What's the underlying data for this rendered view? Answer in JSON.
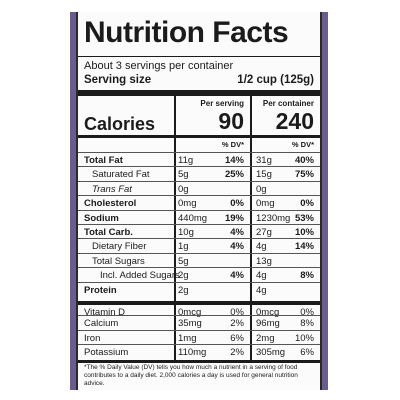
{
  "title": "Nutrition Facts",
  "servings_per_container": "About 3 servings per container",
  "serving_size_label": "Serving size",
  "serving_size_value": "1/2 cup (125g)",
  "columns": {
    "per_serving": "Per serving",
    "per_container": "Per container",
    "calories_label": "Calories",
    "calories_serving": "90",
    "calories_container": "240",
    "dv_header": "% DV*"
  },
  "rows": [
    {
      "name": "Total Fat",
      "style": "bold",
      "a1": "11g",
      "p1": "14%",
      "a2": "31g",
      "p2": "40%"
    },
    {
      "name": "Saturated Fat",
      "style": "indent1",
      "a1": "5g",
      "p1": "25%",
      "a2": "15g",
      "p2": "75%"
    },
    {
      "name": "Trans Fat",
      "style": "indent1 italic",
      "a1": "0g",
      "p1": "",
      "a2": "0g",
      "p2": ""
    },
    {
      "name": "Cholesterol",
      "style": "bold",
      "a1": "0mg",
      "p1": "0%",
      "a2": "0mg",
      "p2": "0%"
    },
    {
      "name": "Sodium",
      "style": "bold",
      "a1": "440mg",
      "p1": "19%",
      "a2": "1230mg",
      "p2": "53%"
    },
    {
      "name": "Total Carb.",
      "style": "bold",
      "a1": "10g",
      "p1": "4%",
      "a2": "27g",
      "p2": "10%"
    },
    {
      "name": "Dietary Fiber",
      "style": "indent1",
      "a1": "1g",
      "p1": "4%",
      "a2": "4g",
      "p2": "14%"
    },
    {
      "name": "Total Sugars",
      "style": "indent1",
      "a1": "5g",
      "p1": "",
      "a2": "13g",
      "p2": ""
    },
    {
      "name": "Incl. Added Sugars",
      "style": "indent2",
      "a1": "2g",
      "p1": "4%",
      "a2": "4g",
      "p2": "8%"
    },
    {
      "name": "Protein",
      "style": "bold",
      "a1": "2g",
      "p1": "",
      "a2": "4g",
      "p2": ""
    },
    {
      "name": "Vitamin D",
      "style": "",
      "a1": "0mcg",
      "p1": "0%",
      "a2": "0mcg",
      "p2": "0%"
    },
    {
      "name": "Calcium",
      "style": "",
      "a1": "35mg",
      "p1": "2%",
      "a2": "96mg",
      "p2": "8%"
    },
    {
      "name": "Iron",
      "style": "",
      "a1": "1mg",
      "p1": "6%",
      "a2": "2mg",
      "p2": "10%"
    },
    {
      "name": "Potassium",
      "style": "",
      "a1": "110mg",
      "p1": "2%",
      "a2": "305mg",
      "p2": "6%"
    }
  ],
  "footnote": "*The % Daily Value (DV) tells you how much a nutrient in a serving of food contributes to a daily diet. 2,000 calories a day is used for general nutrition advice.",
  "colors": {
    "accent_edge": "#6b5c8e",
    "text": "#1b1b1b"
  }
}
